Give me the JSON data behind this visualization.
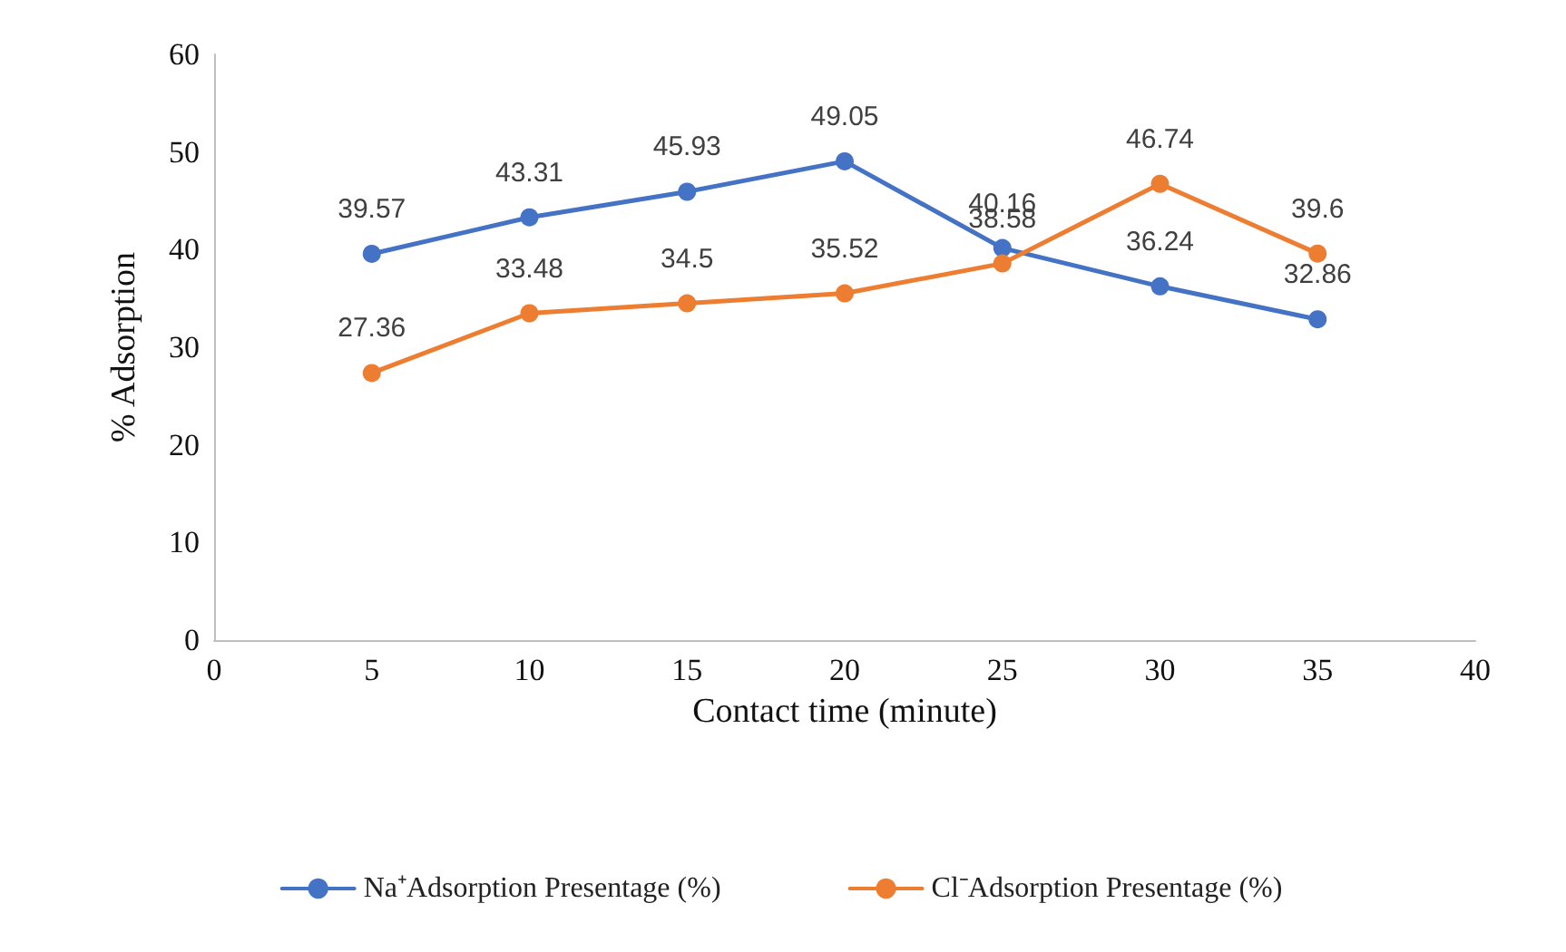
{
  "chart_data": {
    "type": "line",
    "xlabel": "Contact time (minute)",
    "ylabel": "% Adsorption",
    "x": [
      5,
      10,
      15,
      20,
      25,
      30,
      35
    ],
    "series": [
      {
        "name": "Na⁺Adsorption Presentage (%)",
        "color": "#4472c4",
        "values": [
          39.57,
          43.31,
          45.93,
          49.05,
          40.16,
          36.24,
          32.86
        ]
      },
      {
        "name": "Cl⁻Adsorption Presentage (%)",
        "color": "#ed7d31",
        "values": [
          27.36,
          33.48,
          34.5,
          35.52,
          38.58,
          46.74,
          39.6
        ]
      }
    ],
    "xlim": [
      0,
      40
    ],
    "xticks": [
      0,
      5,
      10,
      15,
      20,
      25,
      30,
      35,
      40
    ],
    "ylim": [
      0,
      60
    ],
    "yticks": [
      0,
      10,
      20,
      30,
      40,
      50,
      60
    ],
    "grid": false,
    "legend": "bottom",
    "marker": "circle",
    "line_style": "solid",
    "data_labels": true
  }
}
